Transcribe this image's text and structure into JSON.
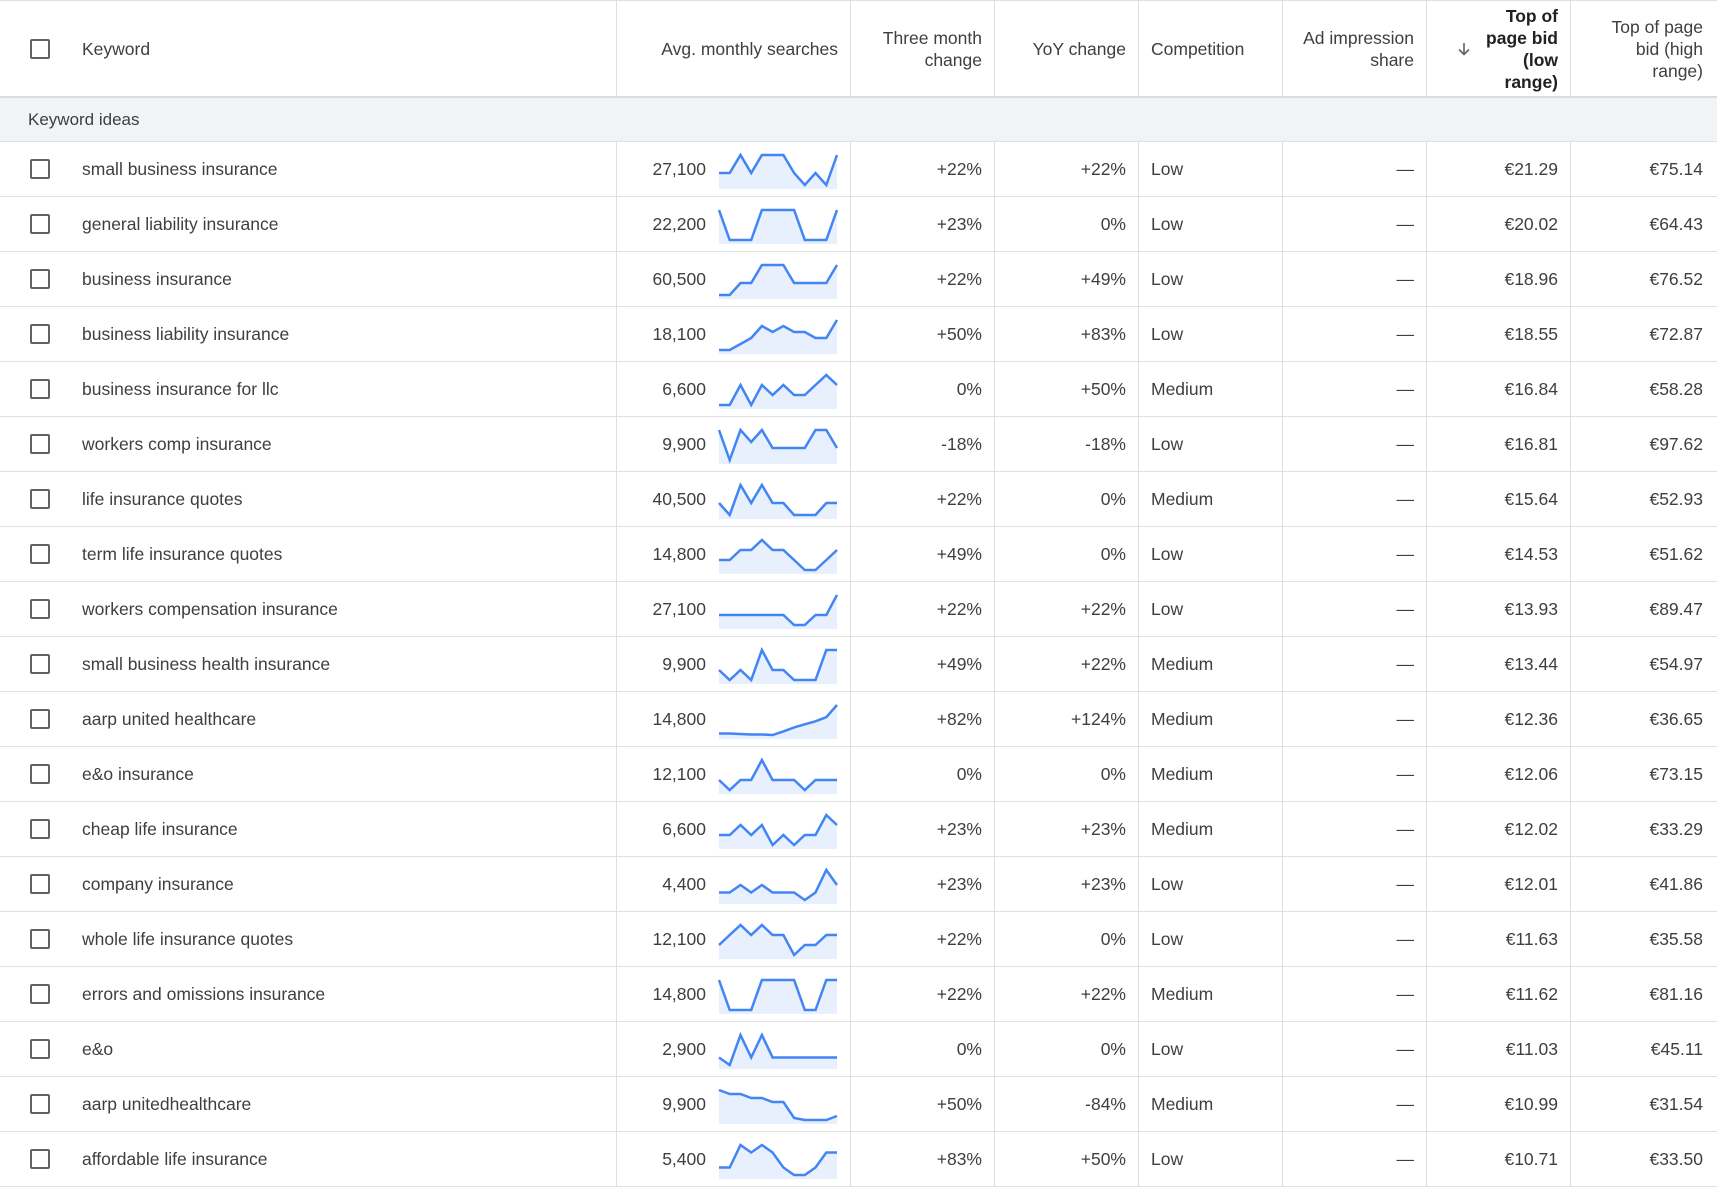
{
  "header": {
    "keyword": "Keyword",
    "avg_monthly": "Avg. monthly searches",
    "three_month": "Three month change",
    "yoy": "YoY change",
    "competition": "Competition",
    "ad_impression": "Ad impression share",
    "top_low": "Top of page bid (low range)",
    "top_high": "Top of page bid (high range)",
    "sort_icon": "arrow-down-icon"
  },
  "group_label": "Keyword ideas",
  "colors": {
    "spark_line": "#4285f4",
    "spark_fill": "#e8f0fe"
  },
  "rows": [
    {
      "keyword": "small business insurance",
      "avg": "27,100",
      "three": "+22%",
      "yoy": "+22%",
      "comp": "Low",
      "imp": "—",
      "low": "€21.29",
      "high": "€75.14",
      "trend": [
        2,
        2,
        5,
        2,
        5,
        5,
        5,
        2,
        0,
        2,
        0,
        5
      ]
    },
    {
      "keyword": "general liability insurance",
      "avg": "22,200",
      "three": "+23%",
      "yoy": "0%",
      "comp": "Low",
      "imp": "—",
      "low": "€20.02",
      "high": "€64.43",
      "trend": [
        5,
        0,
        0,
        0,
        5,
        5,
        5,
        5,
        0,
        0,
        0,
        5
      ]
    },
    {
      "keyword": "business insurance",
      "avg": "60,500",
      "three": "+22%",
      "yoy": "+49%",
      "comp": "Low",
      "imp": "—",
      "low": "€18.96",
      "high": "€76.52",
      "trend": [
        0,
        0,
        2,
        2,
        5,
        5,
        5,
        2,
        2,
        2,
        2,
        5
      ]
    },
    {
      "keyword": "business liability insurance",
      "avg": "18,100",
      "three": "+50%",
      "yoy": "+83%",
      "comp": "Low",
      "imp": "—",
      "low": "€18.55",
      "high": "€72.87",
      "trend": [
        0,
        0,
        1,
        2,
        4,
        3,
        4,
        3,
        3,
        2,
        2,
        5
      ]
    },
    {
      "keyword": "business insurance for llc",
      "avg": "6,600",
      "three": "0%",
      "yoy": "+50%",
      "comp": "Medium",
      "imp": "—",
      "low": "€16.84",
      "high": "€58.28",
      "trend": [
        0,
        0,
        2,
        0,
        2,
        1,
        2,
        1,
        1,
        2,
        3,
        2
      ]
    },
    {
      "keyword": "workers comp insurance",
      "avg": "9,900",
      "three": "-18%",
      "yoy": "-18%",
      "comp": "Low",
      "imp": "—",
      "low": "€16.81",
      "high": "€97.62",
      "trend": [
        5,
        0,
        5,
        3,
        5,
        2,
        2,
        2,
        2,
        5,
        5,
        2
      ]
    },
    {
      "keyword": "life insurance quotes",
      "avg": "40,500",
      "three": "+22%",
      "yoy": "0%",
      "comp": "Medium",
      "imp": "—",
      "low": "€15.64",
      "high": "€52.93",
      "trend": [
        2,
        0,
        5,
        2,
        5,
        2,
        2,
        0,
        0,
        0,
        2,
        2
      ]
    },
    {
      "keyword": "term life insurance quotes",
      "avg": "14,800",
      "three": "+49%",
      "yoy": "0%",
      "comp": "Low",
      "imp": "—",
      "low": "€14.53",
      "high": "€51.62",
      "trend": [
        1,
        1,
        2,
        2,
        3,
        2,
        2,
        1,
        0,
        0,
        1,
        2
      ]
    },
    {
      "keyword": "workers compensation insurance",
      "avg": "27,100",
      "three": "+22%",
      "yoy": "+22%",
      "comp": "Low",
      "imp": "—",
      "low": "€13.93",
      "high": "€89.47",
      "trend": [
        1,
        1,
        1,
        1,
        1,
        1,
        1,
        0,
        0,
        1,
        1,
        3
      ]
    },
    {
      "keyword": "small business health insurance",
      "avg": "9,900",
      "three": "+49%",
      "yoy": "+22%",
      "comp": "Medium",
      "imp": "—",
      "low": "€13.44",
      "high": "€54.97",
      "trend": [
        2,
        1,
        2,
        1,
        4,
        2,
        2,
        1,
        1,
        1,
        4,
        4
      ]
    },
    {
      "keyword": "aarp united healthcare",
      "avg": "14,800",
      "three": "+82%",
      "yoy": "+124%",
      "comp": "Medium",
      "imp": "—",
      "low": "€12.36",
      "high": "€36.65",
      "trend": [
        1,
        1,
        0.95,
        0.9,
        0.9,
        0.85,
        1.2,
        1.6,
        1.9,
        2.2,
        2.6,
        3.8
      ]
    },
    {
      "keyword": "e&o insurance",
      "avg": "12,100",
      "three": "0%",
      "yoy": "0%",
      "comp": "Medium",
      "imp": "—",
      "low": "€12.06",
      "high": "€73.15",
      "trend": [
        1,
        0,
        1,
        1,
        3,
        1,
        1,
        1,
        0,
        1,
        1,
        1
      ]
    },
    {
      "keyword": "cheap life insurance",
      "avg": "6,600",
      "three": "+23%",
      "yoy": "+23%",
      "comp": "Medium",
      "imp": "—",
      "low": "€12.02",
      "high": "€33.29",
      "trend": [
        1,
        1,
        2,
        1,
        2,
        0,
        1,
        0,
        1,
        1,
        3,
        2
      ]
    },
    {
      "keyword": "company insurance",
      "avg": "4,400",
      "three": "+23%",
      "yoy": "+23%",
      "comp": "Low",
      "imp": "—",
      "low": "€12.01",
      "high": "€41.86",
      "trend": [
        1,
        1,
        2,
        1,
        2,
        1,
        1,
        1,
        0,
        1,
        4,
        2
      ]
    },
    {
      "keyword": "whole life insurance quotes",
      "avg": "12,100",
      "three": "+22%",
      "yoy": "0%",
      "comp": "Low",
      "imp": "—",
      "low": "€11.63",
      "high": "€35.58",
      "trend": [
        1,
        2,
        3,
        2,
        3,
        2,
        2,
        0,
        1,
        1,
        2,
        2
      ]
    },
    {
      "keyword": "errors and omissions insurance",
      "avg": "14,800",
      "three": "+22%",
      "yoy": "+22%",
      "comp": "Medium",
      "imp": "—",
      "low": "€11.62",
      "high": "€81.16",
      "trend": [
        5,
        0,
        0,
        0,
        5,
        5,
        5,
        5,
        0,
        0,
        5,
        5
      ]
    },
    {
      "keyword": "e&o",
      "avg": "2,900",
      "three": "0%",
      "yoy": "0%",
      "comp": "Low",
      "imp": "—",
      "low": "€11.03",
      "high": "€45.11",
      "trend": [
        1,
        0,
        4,
        1,
        4,
        1,
        1,
        1,
        1,
        1,
        1,
        1
      ]
    },
    {
      "keyword": "aarp unitedhealthcare",
      "avg": "9,900",
      "three": "+50%",
      "yoy": "-84%",
      "comp": "Medium",
      "imp": "—",
      "low": "€10.99",
      "high": "€31.54",
      "trend": [
        5,
        4.6,
        4.6,
        4.2,
        4.2,
        3.8,
        3.8,
        2.2,
        2,
        2,
        2,
        2.4
      ]
    },
    {
      "keyword": "affordable life insurance",
      "avg": "5,400",
      "three": "+83%",
      "yoy": "+50%",
      "comp": "Low",
      "imp": "—",
      "low": "€10.71",
      "high": "€33.50",
      "trend": [
        1,
        1,
        4,
        3,
        4,
        3,
        1,
        0,
        0,
        1,
        3,
        3
      ]
    }
  ]
}
